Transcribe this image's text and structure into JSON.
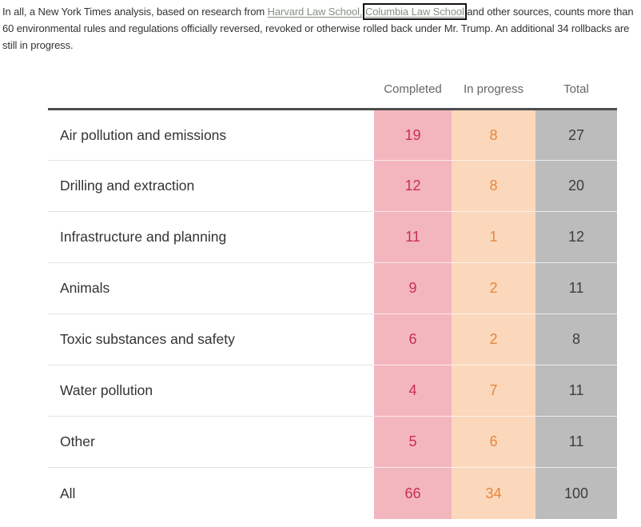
{
  "intro": {
    "text_before": "In all, a New York Times analysis, based on research from ",
    "harvard_link": "Harvard Law School,",
    "separator": " ",
    "columbia_link": "Columbia Law School",
    "text_after": " and other sources, counts more than 60 environmental rules and regulations officially reversed, revoked or otherwise rolled back under Mr. Trump. An additional 34 rollbacks are still in progress."
  },
  "table": {
    "headers": {
      "completed": "Completed",
      "in_progress": "In progress",
      "total": "Total"
    },
    "rows": [
      {
        "label": "Air pollution and emissions",
        "completed": "19",
        "in_progress": "8",
        "total": "27"
      },
      {
        "label": "Drilling and extraction",
        "completed": "12",
        "in_progress": "8",
        "total": "20"
      },
      {
        "label": "Infrastructure and planning",
        "completed": "11",
        "in_progress": "1",
        "total": "12"
      },
      {
        "label": "Animals",
        "completed": "9",
        "in_progress": "2",
        "total": "11"
      },
      {
        "label": "Toxic substances and safety",
        "completed": "6",
        "in_progress": "2",
        "total": "8"
      },
      {
        "label": "Water pollution",
        "completed": "4",
        "in_progress": "7",
        "total": "11"
      },
      {
        "label": "Other",
        "completed": "5",
        "in_progress": "6",
        "total": "11"
      },
      {
        "label": "All",
        "completed": "66",
        "in_progress": "34",
        "total": "100"
      }
    ]
  },
  "colors": {
    "completed_bg": "#f3b6be",
    "completed_text": "#ca2f52",
    "in_progress_bg": "#fbd8bb",
    "in_progress_text": "#e6863f",
    "total_bg": "#bcbcbc",
    "total_text": "#3d3d3d",
    "link": "#84917f",
    "highlight_box": "#111111"
  },
  "chart_data": {
    "type": "table",
    "title": "Environmental rollbacks under Mr. Trump",
    "categories": [
      "Air pollution and emissions",
      "Drilling and extraction",
      "Infrastructure and planning",
      "Animals",
      "Toxic substances and safety",
      "Water pollution",
      "Other",
      "All"
    ],
    "series": [
      {
        "name": "Completed",
        "values": [
          19,
          12,
          11,
          9,
          6,
          4,
          5,
          66
        ]
      },
      {
        "name": "In progress",
        "values": [
          8,
          8,
          1,
          2,
          2,
          7,
          6,
          34
        ]
      },
      {
        "name": "Total",
        "values": [
          27,
          20,
          12,
          11,
          8,
          11,
          11,
          100
        ]
      }
    ]
  }
}
